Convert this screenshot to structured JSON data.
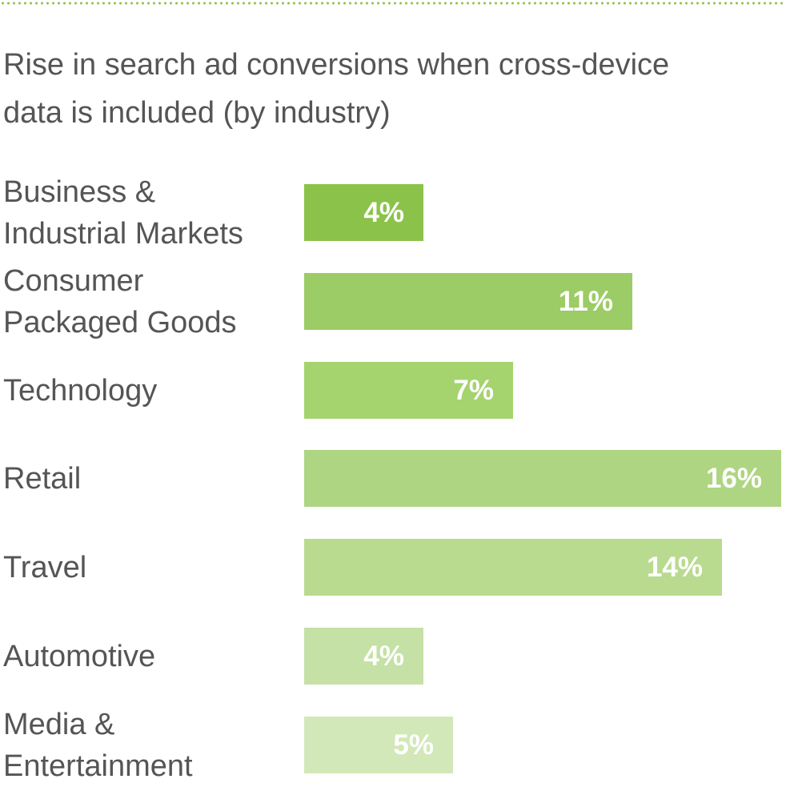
{
  "chart_data": {
    "type": "bar",
    "orientation": "horizontal",
    "title_lines": [
      "Rise in search ad conversions when cross-device",
      "data is included (by industry)"
    ],
    "categories": [
      [
        "Business &",
        "Industrial Markets"
      ],
      [
        "Consumer",
        "Packaged Goods"
      ],
      [
        "Technology"
      ],
      [
        "Retail"
      ],
      [
        "Travel"
      ],
      [
        "Automotive"
      ],
      [
        "Media &",
        "Entertainment"
      ]
    ],
    "values": [
      4,
      11,
      7,
      16,
      14,
      4,
      5
    ],
    "value_labels": [
      "4%",
      "11%",
      "7%",
      "16%",
      "14%",
      "4%",
      "5%"
    ],
    "bar_colors": [
      "#8bc34a",
      "#9ccc65",
      "#a5d36e",
      "#aed581",
      "#b9db8f",
      "#c5e1a5",
      "#d2e8b8"
    ],
    "xlim": [
      0,
      16
    ],
    "grid": false,
    "legend": "none"
  }
}
